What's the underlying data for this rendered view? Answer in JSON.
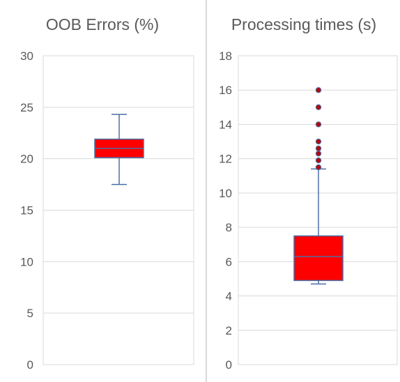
{
  "chart_data": [
    {
      "type": "box",
      "title": "OOB Errors (%)",
      "ylim": [
        0,
        30
      ],
      "yticks": [
        0,
        5,
        10,
        15,
        20,
        25,
        30
      ],
      "grid": true,
      "box": {
        "whisker_low": 17.5,
        "q1": 20.1,
        "median": 21.0,
        "q3": 21.9,
        "whisker_high": 24.3,
        "outliers": []
      }
    },
    {
      "type": "box",
      "title": "Processing times (s)",
      "ylim": [
        0,
        18
      ],
      "yticks": [
        0,
        2,
        4,
        6,
        8,
        10,
        12,
        14,
        16,
        18
      ],
      "grid": true,
      "box": {
        "whisker_low": 4.7,
        "q1": 4.9,
        "median": 6.3,
        "q3": 7.5,
        "whisker_high": 11.4,
        "outliers": [
          11.5,
          11.9,
          12.3,
          12.6,
          13.0,
          14.0,
          15.0,
          16.0
        ]
      }
    }
  ],
  "colors": {
    "box_fill": "#ff0000",
    "box_stroke": "#4a6fa5",
    "whisker": "#4a6fa5",
    "median": "#4a6fa5",
    "outlier_fill": "#c00000",
    "outlier_stroke": "#4a6fa5",
    "grid": "#d9d9d9",
    "frame": "#d9d9d9",
    "tick_text": "#595959",
    "title_text": "#595959"
  }
}
